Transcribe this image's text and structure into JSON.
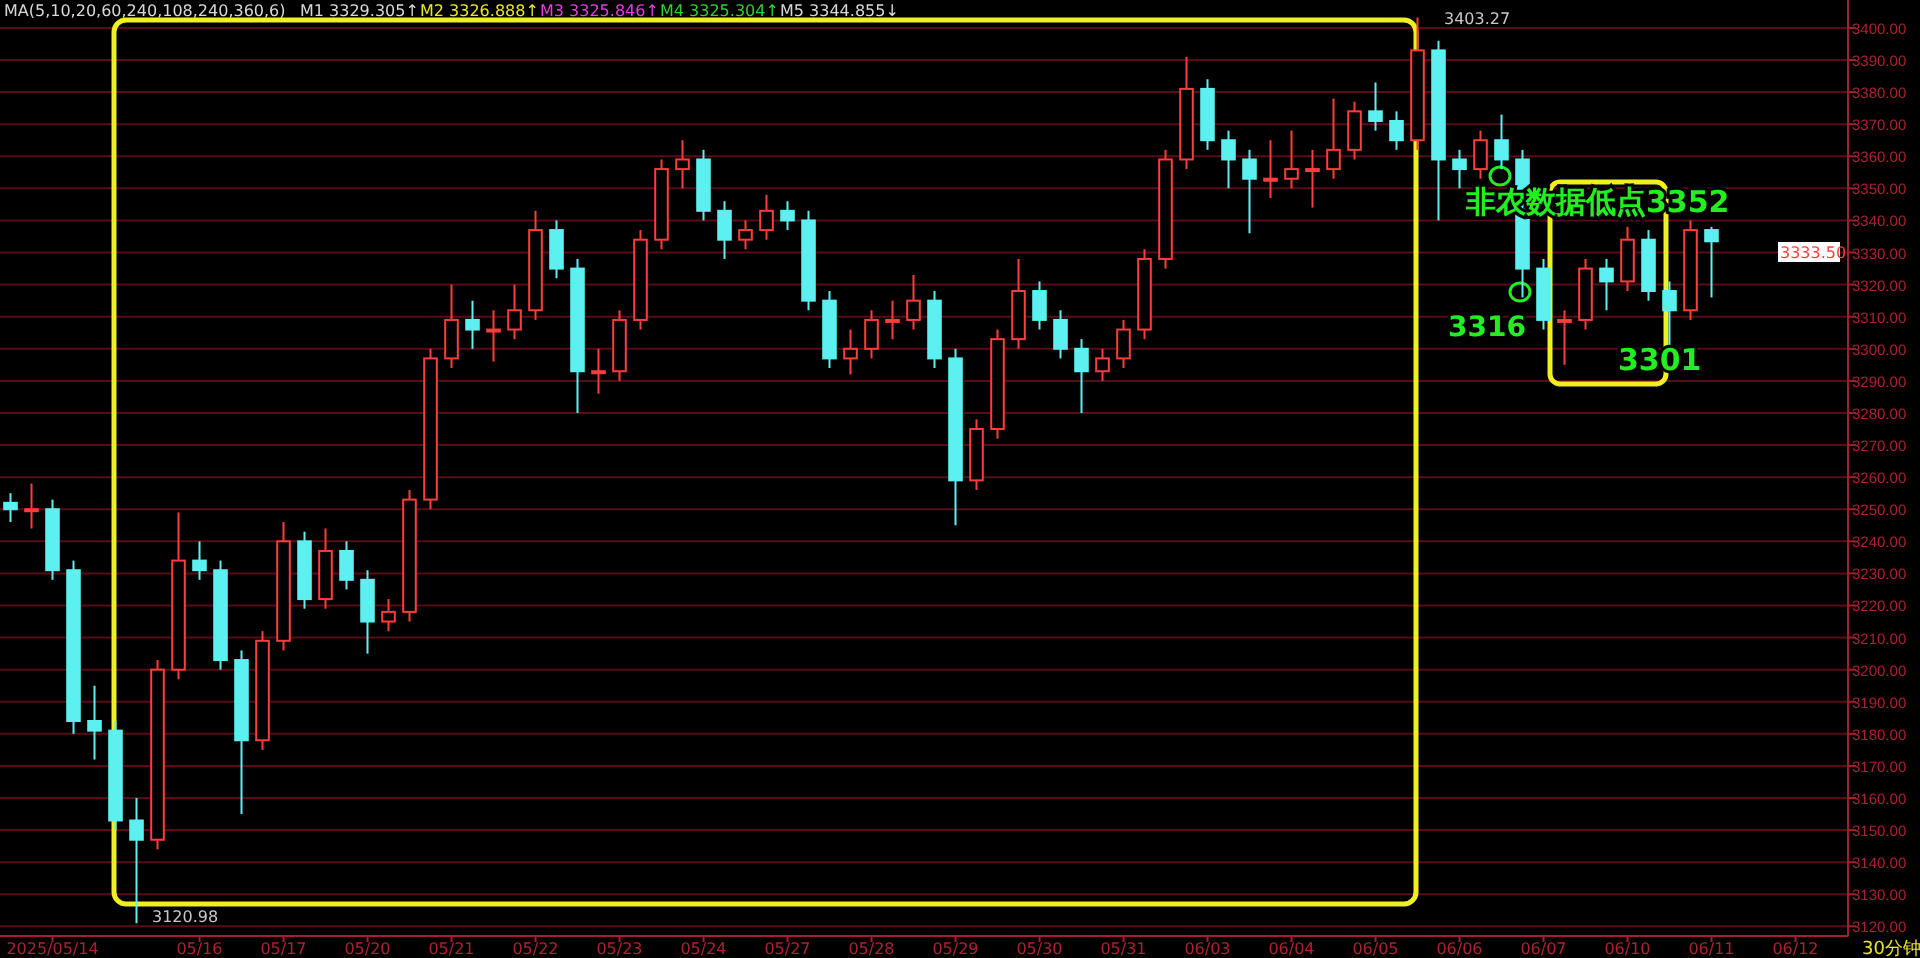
{
  "chart_data": {
    "type": "candlestick",
    "categories": [
      null,
      null,
      "2025/05/14",
      null,
      null,
      null,
      null,
      null,
      null,
      "05/16",
      null,
      null,
      null,
      "05/17",
      null,
      null,
      null,
      "05/20",
      null,
      null,
      null,
      "05/21",
      null,
      null,
      null,
      "05/22",
      null,
      null,
      null,
      "05/23",
      null,
      null,
      null,
      "05/24",
      null,
      null,
      null,
      "05/27",
      null,
      null,
      null,
      "05/28",
      null,
      null,
      null,
      "05/29",
      null,
      null,
      null,
      "05/30",
      null,
      null,
      null,
      "05/31",
      null,
      null,
      null,
      "06/03",
      null,
      null,
      null,
      "06/04",
      null,
      null,
      null,
      "06/05",
      null,
      null,
      null,
      "06/06",
      null,
      null,
      null,
      "06/07",
      null,
      null,
      null,
      "06/10",
      null,
      null,
      null,
      "06/11",
      null,
      null,
      null,
      "06/12",
      null,
      null
    ],
    "ohlc": [
      [
        3252,
        3255,
        3246,
        3250
      ],
      [
        3250,
        3258,
        3244,
        3250
      ],
      [
        3250,
        3253,
        3228,
        3231
      ],
      [
        3231,
        3234,
        3180,
        3184
      ],
      [
        3184,
        3195,
        3172,
        3181
      ],
      [
        3181,
        3184,
        3150,
        3153
      ],
      [
        3153,
        3160,
        3120.98,
        3147
      ],
      [
        3147,
        3203,
        3144,
        3200
      ],
      [
        3200,
        3249,
        3197,
        3234
      ],
      [
        3234,
        3240,
        3228,
        3231
      ],
      [
        3231,
        3234,
        3200,
        3203
      ],
      [
        3203,
        3206,
        3155,
        3178
      ],
      [
        3178,
        3212,
        3175,
        3209
      ],
      [
        3209,
        3246,
        3206,
        3240
      ],
      [
        3240,
        3243,
        3219,
        3222
      ],
      [
        3222,
        3244,
        3219,
        3237
      ],
      [
        3237,
        3240,
        3225,
        3228
      ],
      [
        3228,
        3231,
        3205,
        3215
      ],
      [
        3215,
        3222,
        3212,
        3218
      ],
      [
        3218,
        3256,
        3215,
        3253
      ],
      [
        3253,
        3300,
        3250,
        3297
      ],
      [
        3297,
        3320,
        3294,
        3309
      ],
      [
        3309,
        3315,
        3300,
        3306
      ],
      [
        3306,
        3312,
        3296,
        3306
      ],
      [
        3306,
        3320,
        3303,
        3312
      ],
      [
        3312,
        3343,
        3309,
        3337
      ],
      [
        3337,
        3340,
        3322,
        3325
      ],
      [
        3325,
        3328,
        3280,
        3293
      ],
      [
        3293,
        3300,
        3286,
        3293
      ],
      [
        3293,
        3312,
        3290,
        3309
      ],
      [
        3309,
        3337,
        3306,
        3334
      ],
      [
        3334,
        3359,
        3331,
        3356
      ],
      [
        3356,
        3365,
        3350,
        3359
      ],
      [
        3359,
        3362,
        3340,
        3343
      ],
      [
        3343,
        3346,
        3328,
        3334
      ],
      [
        3334,
        3340,
        3331,
        3337
      ],
      [
        3337,
        3348,
        3334,
        3343
      ],
      [
        3343,
        3346,
        3337,
        3340
      ],
      [
        3340,
        3343,
        3312,
        3315
      ],
      [
        3315,
        3318,
        3294,
        3297
      ],
      [
        3297,
        3306,
        3292,
        3300
      ],
      [
        3300,
        3312,
        3297,
        3309
      ],
      [
        3309,
        3315,
        3303,
        3309
      ],
      [
        3309,
        3323,
        3306,
        3315
      ],
      [
        3315,
        3318,
        3294,
        3297
      ],
      [
        3297,
        3300,
        3245,
        3259
      ],
      [
        3259,
        3278,
        3256,
        3275
      ],
      [
        3275,
        3306,
        3272,
        3303
      ],
      [
        3303,
        3328,
        3300,
        3318
      ],
      [
        3318,
        3321,
        3306,
        3309
      ],
      [
        3309,
        3312,
        3297,
        3300
      ],
      [
        3300,
        3303,
        3280,
        3293
      ],
      [
        3293,
        3300,
        3290,
        3297
      ],
      [
        3297,
        3309,
        3294,
        3306
      ],
      [
        3306,
        3331,
        3303,
        3328
      ],
      [
        3328,
        3362,
        3325,
        3359
      ],
      [
        3359,
        3391,
        3356,
        3381
      ],
      [
        3381,
        3384,
        3362,
        3365
      ],
      [
        3365,
        3368,
        3350,
        3359
      ],
      [
        3359,
        3362,
        3336,
        3353
      ],
      [
        3353,
        3365,
        3347,
        3353
      ],
      [
        3353,
        3368,
        3350,
        3356
      ],
      [
        3356,
        3362,
        3344,
        3356
      ],
      [
        3356,
        3378,
        3353,
        3362
      ],
      [
        3362,
        3377,
        3359,
        3374
      ],
      [
        3374,
        3383,
        3368,
        3371
      ],
      [
        3371,
        3374,
        3362,
        3365
      ],
      [
        3365,
        3403.27,
        3362,
        3393
      ],
      [
        3393,
        3396,
        3340,
        3359
      ],
      [
        3359,
        3362,
        3350,
        3356
      ],
      [
        3356,
        3368,
        3353,
        3365
      ],
      [
        3365,
        3373,
        3356,
        3359
      ],
      [
        3359,
        3362,
        3316,
        3325
      ],
      [
        3325,
        3328,
        3306,
        3309
      ],
      [
        3309,
        3312,
        3295,
        3309
      ],
      [
        3309,
        3328,
        3306,
        3325
      ],
      [
        3325,
        3328,
        3312,
        3321
      ],
      [
        3321,
        3338,
        3318,
        3334
      ],
      [
        3334,
        3337,
        3315,
        3318
      ],
      [
        3318,
        3321,
        3301,
        3312
      ],
      [
        3312,
        3340,
        3309,
        3337
      ],
      [
        3337,
        3338,
        3316,
        3333.5
      ],
      null,
      null,
      null,
      null,
      null,
      null
    ],
    "ylim": [
      3117,
      3408.7
    ],
    "yticks": [
      {
        "value": 3120,
        "label": "3120.00"
      },
      {
        "value": 3130,
        "label": "3130.00"
      },
      {
        "value": 3140,
        "label": "3140.00"
      },
      {
        "value": 3150,
        "label": "3150.00"
      },
      {
        "value": 3160,
        "label": "3160.00"
      },
      {
        "value": 3170,
        "label": "3170.00"
      },
      {
        "value": 3180,
        "label": "3180.00"
      },
      {
        "value": 3190,
        "label": "3190.00"
      },
      {
        "value": 3200,
        "label": "3200.00"
      },
      {
        "value": 3210,
        "label": "3210.00"
      },
      {
        "value": 3220,
        "label": "3220.00"
      },
      {
        "value": 3230,
        "label": "3230.00"
      },
      {
        "value": 3240,
        "label": "3240.00"
      },
      {
        "value": 3250,
        "label": "3250.00"
      },
      {
        "value": 3260,
        "label": "3260.00"
      },
      {
        "value": 3270,
        "label": "3270.00"
      },
      {
        "value": 3280,
        "label": "3280.00"
      },
      {
        "value": 3290,
        "label": "3290.00"
      },
      {
        "value": 3300,
        "label": "3300.00"
      },
      {
        "value": 3310,
        "label": "3310.00"
      },
      {
        "value": 3320,
        "label": "3320.00"
      },
      {
        "value": 3330,
        "label": "3330.00"
      },
      {
        "value": 3340,
        "label": "3340.00"
      },
      {
        "value": 3350,
        "label": "3350.00"
      },
      {
        "value": 3360,
        "label": "3360.00"
      },
      {
        "value": 3370,
        "label": "3370.00"
      },
      {
        "value": 3380,
        "label": "3380.00"
      },
      {
        "value": 3390,
        "label": "3390.00"
      },
      {
        "value": 3400,
        "label": "3400.00"
      }
    ],
    "grid": "y",
    "annotations": [
      "MA(5,10,20,60,240,108,240,360,6)",
      "M1 3329.305↑",
      "M2 3326.888↑",
      "M3 3325.846↑",
      "M4 3325.304↑",
      "M5 3344.855↓",
      "3403.27",
      "3120.98",
      "非农数据低点3352",
      "3316",
      "3301",
      "3333.50",
      "30分钟"
    ]
  }
}
